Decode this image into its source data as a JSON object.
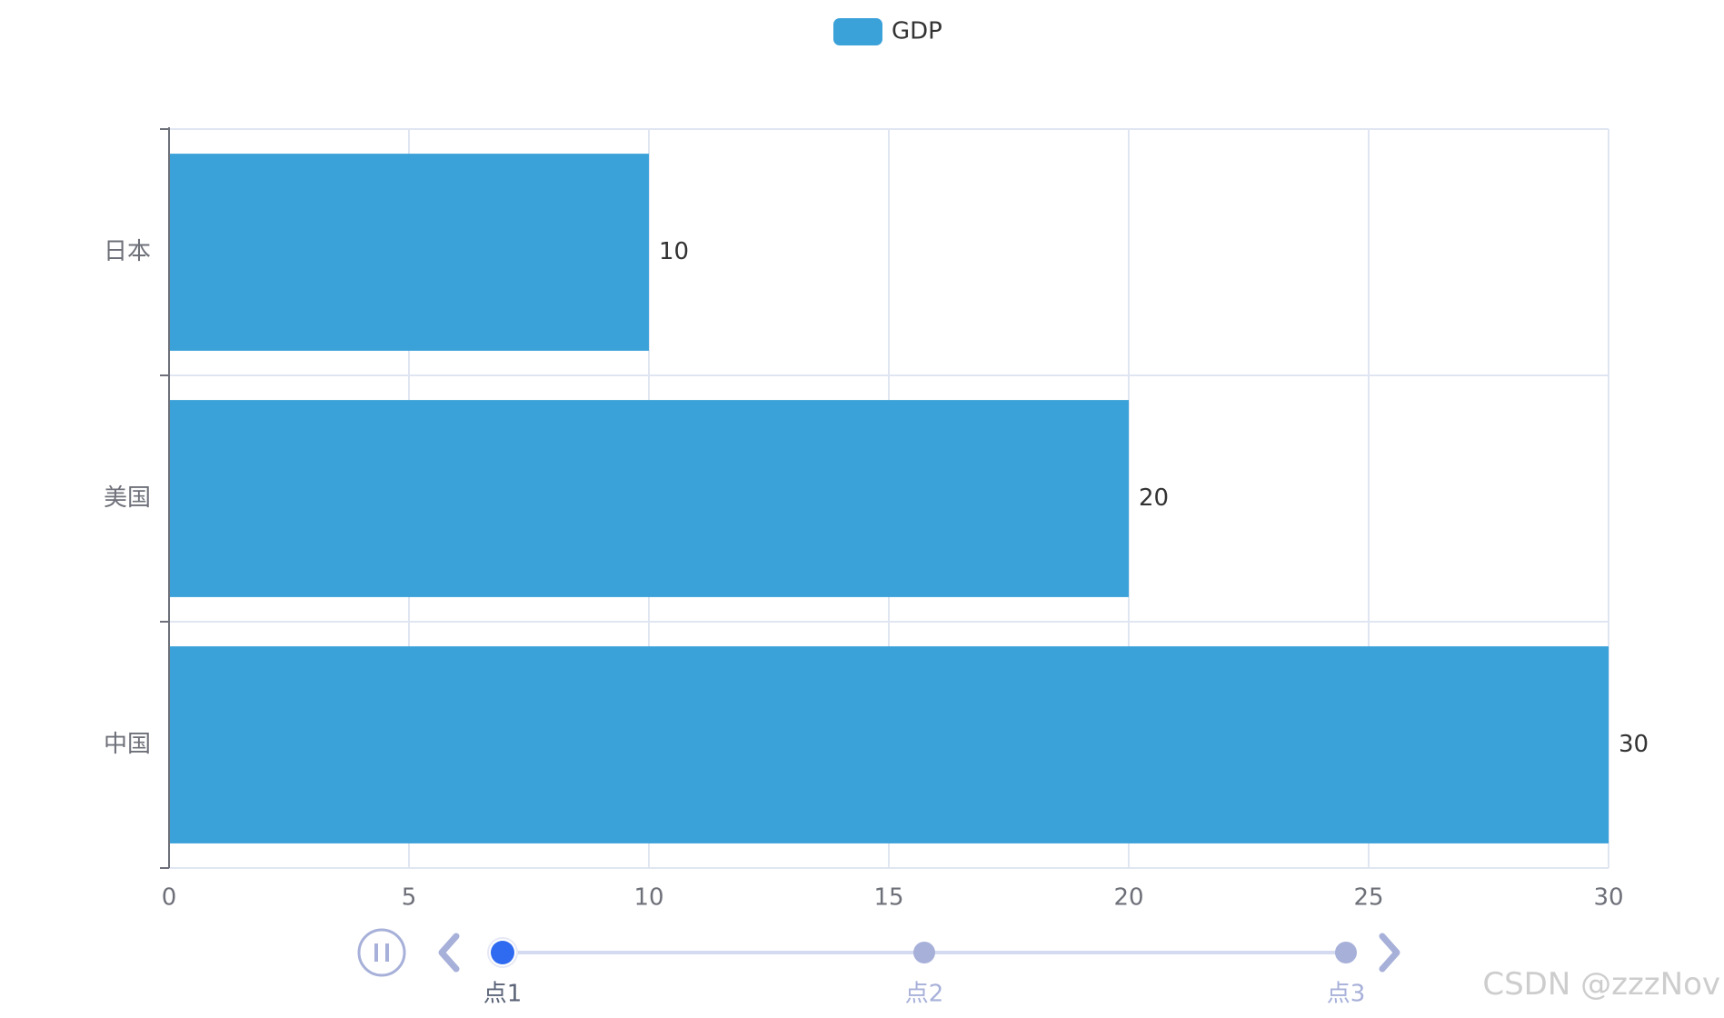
{
  "chart_data": {
    "type": "bar",
    "orientation": "horizontal",
    "categories": [
      "日本",
      "美国",
      "中国"
    ],
    "series": [
      {
        "name": "GDP",
        "values": [
          10,
          20,
          30
        ]
      }
    ],
    "xlim": [
      0,
      30
    ],
    "x_ticks": [
      "0",
      "5",
      "10",
      "15",
      "20",
      "25",
      "30"
    ],
    "data_labels": [
      "10",
      "20",
      "30"
    ],
    "grid": true,
    "legend": {
      "position": "top-center",
      "entries": [
        "GDP"
      ]
    },
    "colors": {
      "bar": "#3AA1D9",
      "timeline_active": "#2F6BF0",
      "timeline_inactive": "#A7B0D9",
      "timeline_line": "#D4DAF0",
      "axis": "#6E7079",
      "grid": "#E0E6F1"
    }
  },
  "timeline": {
    "points": [
      "点1",
      "点2",
      "点3"
    ],
    "current_index": 0,
    "play_icon": "pause-icon",
    "prev_icon": "chevron-left-icon",
    "next_icon": "chevron-right-icon"
  },
  "watermark": "CSDN @zzzNov"
}
